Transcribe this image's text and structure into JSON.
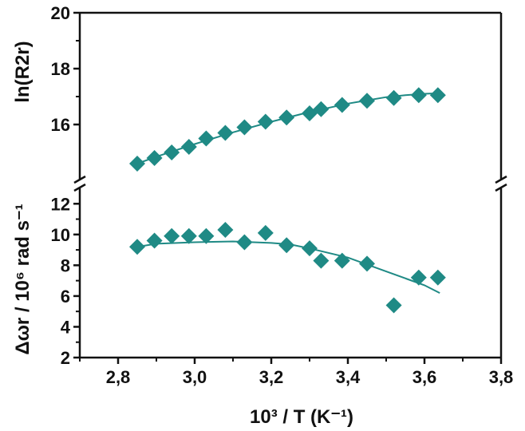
{
  "chart_data": {
    "type": "scatter",
    "accent_color": "#1f8a85",
    "xlabel": "10³ / T (K⁻¹)",
    "xlim": [
      2.7,
      3.8
    ],
    "x_ticks": [
      "2,8",
      "3,0",
      "3,2",
      "3,4",
      "3,6",
      "3,8"
    ],
    "grid": false,
    "legend": "none",
    "panels": [
      {
        "id": "top",
        "ylabel": "ln(R2r)",
        "ylim": [
          14.0,
          20.0
        ],
        "y_ticks": [
          "16",
          "18",
          "20"
        ],
        "y_tick_values": [
          16,
          18,
          20
        ],
        "points": {
          "x": [
            2.85,
            2.895,
            2.94,
            2.985,
            3.03,
            3.08,
            3.13,
            3.185,
            3.24,
            3.3,
            3.33,
            3.385,
            3.45,
            3.52,
            3.585,
            3.635
          ],
          "y": [
            14.6,
            14.8,
            15.0,
            15.2,
            15.5,
            15.7,
            15.9,
            16.1,
            16.25,
            16.4,
            16.55,
            16.7,
            16.85,
            16.95,
            17.05,
            17.05
          ]
        },
        "fit": {
          "x": [
            2.85,
            2.9,
            3.0,
            3.1,
            3.2,
            3.3,
            3.4,
            3.5,
            3.55,
            3.6,
            3.64
          ],
          "y": [
            14.6,
            14.85,
            15.3,
            15.72,
            16.1,
            16.45,
            16.75,
            16.98,
            17.05,
            17.1,
            17.12
          ]
        }
      },
      {
        "id": "bottom",
        "ylabel": "Δωr / 10⁶ rad s⁻¹",
        "ylim": [
          2,
          13
        ],
        "y_ticks": [
          "2",
          "4",
          "6",
          "8",
          "10",
          "12"
        ],
        "y_tick_values": [
          2,
          4,
          6,
          8,
          10,
          12
        ],
        "points": {
          "x": [
            2.85,
            2.895,
            2.94,
            2.985,
            3.03,
            3.08,
            3.13,
            3.185,
            3.24,
            3.3,
            3.33,
            3.385,
            3.45,
            3.52,
            3.585,
            3.635
          ],
          "y": [
            9.2,
            9.6,
            9.9,
            9.9,
            9.9,
            10.3,
            9.5,
            10.1,
            9.3,
            9.1,
            8.3,
            8.3,
            8.1,
            5.4,
            7.2,
            7.2
          ]
        },
        "fit": {
          "x": [
            2.85,
            2.9,
            3.0,
            3.1,
            3.2,
            3.25,
            3.3,
            3.4,
            3.5,
            3.6,
            3.64
          ],
          "y": [
            9.2,
            9.4,
            9.5,
            9.55,
            9.45,
            9.35,
            9.1,
            8.5,
            7.6,
            6.7,
            6.2
          ]
        }
      }
    ]
  }
}
